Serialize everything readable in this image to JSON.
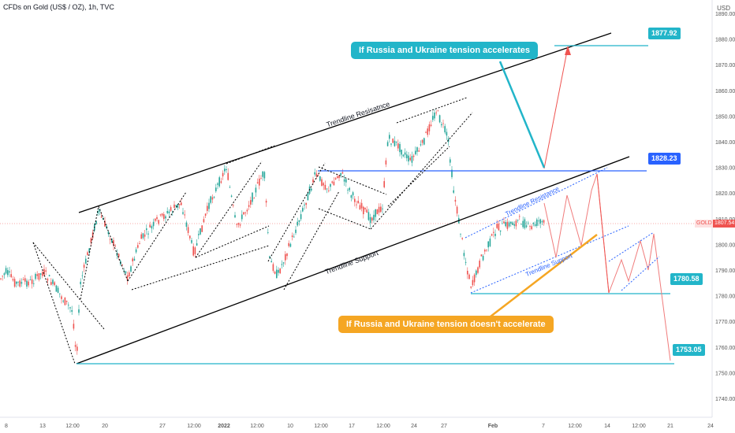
{
  "header": {
    "title": "CFDs on Gold (US$ / OZ), 1h, TVC",
    "currency": "USD"
  },
  "price_axis": {
    "labels": [
      "1890.00",
      "1880.00",
      "1870.00",
      "1860.00",
      "1850.00",
      "1840.00",
      "1830.00",
      "1820.00",
      "1810.00",
      "1800.00",
      "1790.00",
      "1780.00",
      "1770.00",
      "1760.00",
      "1750.00",
      "1740.00"
    ]
  },
  "time_axis": {
    "labels": [
      "8",
      "13",
      "12:00",
      "20",
      "27",
      "12:00",
      "2022",
      "12:00",
      "10",
      "12:00",
      "17",
      "12:00",
      "24",
      "27",
      "Feb",
      "7",
      "12:00",
      "14",
      "12:00",
      "21",
      "24"
    ]
  },
  "current_price": {
    "symbol": "GOLD",
    "value": "1807.54"
  },
  "targets": [
    {
      "value": "1877.92",
      "color": "#22b5c9"
    },
    {
      "value": "1828.23",
      "color": "#2962ff"
    },
    {
      "value": "1780.58",
      "color": "#22b5c9"
    },
    {
      "value": "1753.05",
      "color": "#22b5c9"
    }
  ],
  "annotations": {
    "trendline_resistance_main": "Trendline Resisatnce",
    "trendline_support_main": "Trendline Support",
    "trendline_resistance_small": "Trendline Resistance",
    "trendline_support_small": "Trendline Support"
  },
  "callouts": {
    "accelerates": "If Russia and Ukraine tension accelerates",
    "not_accelerate": "If Russia and Ukraine tension doesn't accelerate"
  },
  "colors": {
    "up": "#26a69a",
    "down": "#ef5350",
    "cyan": "#22b5c9",
    "blue": "#2962ff",
    "orange": "#f5a623"
  }
}
